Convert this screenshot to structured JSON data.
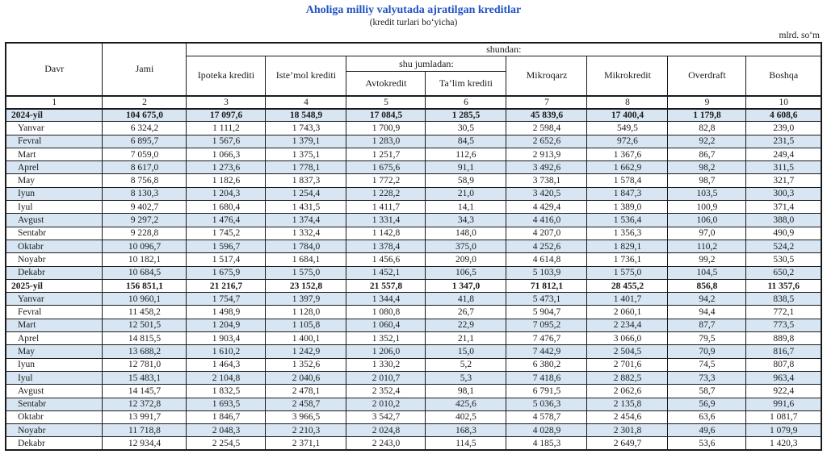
{
  "title": "Aholiga milliy valyutada ajratilgan kreditlar",
  "subtitle": "(kredit turlari boʻyicha)",
  "unit_label": "mlrd. soʻm",
  "colors": {
    "title_accent": "#2153c4",
    "row_highlight": "#d8e6f3",
    "border": "#1a1a1a"
  },
  "table": {
    "header": {
      "davr": "Davr",
      "jami": "Jami",
      "shundan": "shundan:",
      "shu_jumladan": "shu jumladan:",
      "ipoteka": "Ipoteka krediti",
      "istemol": "Iste’mol krediti",
      "avtokredit": "Avtokredit",
      "talim": "Ta’lim krediti",
      "mikroqarz": "Mikroqarz",
      "mikrokredit": "Mikrokredit",
      "overdraft": "Overdraft",
      "boshqa": "Boshqa",
      "column_numbers": [
        "1",
        "2",
        "3",
        "4",
        "5",
        "6",
        "7",
        "8",
        "9",
        "10"
      ]
    },
    "rows": [
      {
        "label": "2024-yil",
        "bold": true,
        "values": [
          "104 675,0",
          "17 097,6",
          "18 548,9",
          "17 084,5",
          "1 285,5",
          "45 839,6",
          "17 400,4",
          "1 179,8",
          "4 608,6"
        ]
      },
      {
        "label": "Yanvar",
        "bold": false,
        "values": [
          "6 324,2",
          "1 111,2",
          "1 743,3",
          "1 700,9",
          "30,5",
          "2 598,4",
          "549,5",
          "82,8",
          "239,0"
        ]
      },
      {
        "label": "Fevral",
        "bold": false,
        "values": [
          "6 895,7",
          "1 567,6",
          "1 379,1",
          "1 283,0",
          "84,5",
          "2 652,6",
          "972,6",
          "92,2",
          "231,5"
        ]
      },
      {
        "label": "Mart",
        "bold": false,
        "values": [
          "7 059,0",
          "1 066,3",
          "1 375,1",
          "1 251,7",
          "112,6",
          "2 913,9",
          "1 367,6",
          "86,7",
          "249,4"
        ]
      },
      {
        "label": "Aprel",
        "bold": false,
        "values": [
          "8 617,0",
          "1 273,6",
          "1 778,1",
          "1 675,6",
          "91,1",
          "3 492,6",
          "1 662,9",
          "98,2",
          "311,5"
        ]
      },
      {
        "label": "May",
        "bold": false,
        "values": [
          "8 756,8",
          "1 182,6",
          "1 837,3",
          "1 772,2",
          "58,9",
          "3 738,1",
          "1 578,4",
          "98,7",
          "321,7"
        ]
      },
      {
        "label": "Iyun",
        "bold": false,
        "values": [
          "8 130,3",
          "1 204,3",
          "1 254,4",
          "1 228,2",
          "21,0",
          "3 420,5",
          "1 847,3",
          "103,5",
          "300,3"
        ]
      },
      {
        "label": "Iyul",
        "bold": false,
        "values": [
          "9 402,7",
          "1 680,4",
          "1 431,5",
          "1 411,7",
          "14,1",
          "4 429,4",
          "1 389,0",
          "100,9",
          "371,4"
        ]
      },
      {
        "label": "Avgust",
        "bold": false,
        "values": [
          "9 297,2",
          "1 476,4",
          "1 374,4",
          "1 331,4",
          "34,3",
          "4 416,0",
          "1 536,4",
          "106,0",
          "388,0"
        ]
      },
      {
        "label": "Sentabr",
        "bold": false,
        "values": [
          "9 228,8",
          "1 745,2",
          "1 332,4",
          "1 142,8",
          "148,0",
          "4 207,0",
          "1 356,3",
          "97,0",
          "490,9"
        ]
      },
      {
        "label": "Oktabr",
        "bold": false,
        "values": [
          "10 096,7",
          "1 596,7",
          "1 784,0",
          "1 378,4",
          "375,0",
          "4 252,6",
          "1 829,1",
          "110,2",
          "524,2"
        ]
      },
      {
        "label": "Noyabr",
        "bold": false,
        "values": [
          "10 182,1",
          "1 517,4",
          "1 684,1",
          "1 456,6",
          "209,0",
          "4 614,8",
          "1 736,1",
          "99,2",
          "530,5"
        ]
      },
      {
        "label": "Dekabr",
        "bold": false,
        "values": [
          "10 684,5",
          "1 675,9",
          "1 575,0",
          "1 452,1",
          "106,5",
          "5 103,9",
          "1 575,0",
          "104,5",
          "650,2"
        ]
      },
      {
        "label": "2025-yil",
        "bold": true,
        "values": [
          "156 851,1",
          "21 216,7",
          "23 152,8",
          "21 557,8",
          "1 347,0",
          "71 812,1",
          "28 455,2",
          "856,8",
          "11 357,6"
        ]
      },
      {
        "label": "Yanvar",
        "bold": false,
        "values": [
          "10 960,1",
          "1 754,7",
          "1 397,9",
          "1 344,4",
          "41,8",
          "5 473,1",
          "1 401,7",
          "94,2",
          "838,5"
        ]
      },
      {
        "label": "Fevral",
        "bold": false,
        "values": [
          "11 458,2",
          "1 498,9",
          "1 128,0",
          "1 080,8",
          "26,7",
          "5 904,7",
          "2 060,1",
          "94,4",
          "772,1"
        ]
      },
      {
        "label": "Mart",
        "bold": false,
        "values": [
          "12 501,5",
          "1 204,9",
          "1 105,8",
          "1 060,4",
          "22,9",
          "7 095,2",
          "2 234,4",
          "87,7",
          "773,5"
        ]
      },
      {
        "label": "Aprel",
        "bold": false,
        "values": [
          "14 815,5",
          "1 903,4",
          "1 400,1",
          "1 352,1",
          "21,1",
          "7 476,7",
          "3 066,0",
          "79,5",
          "889,8"
        ]
      },
      {
        "label": "May",
        "bold": false,
        "values": [
          "13 688,2",
          "1 610,2",
          "1 242,9",
          "1 206,0",
          "15,0",
          "7 442,9",
          "2 504,5",
          "70,9",
          "816,7"
        ]
      },
      {
        "label": "Iyun",
        "bold": false,
        "values": [
          "12 781,0",
          "1 464,3",
          "1 352,6",
          "1 330,2",
          "5,2",
          "6 380,2",
          "2 701,6",
          "74,5",
          "807,8"
        ]
      },
      {
        "label": "Iyul",
        "bold": false,
        "values": [
          "15 483,1",
          "2 104,8",
          "2 040,6",
          "2 010,7",
          "5,3",
          "7 418,6",
          "2 882,5",
          "73,3",
          "963,4"
        ]
      },
      {
        "label": "Avgust",
        "bold": false,
        "values": [
          "14 145,7",
          "1 832,5",
          "2 478,1",
          "2 352,4",
          "98,1",
          "6 791,5",
          "2 062,6",
          "58,7",
          "922,4"
        ]
      },
      {
        "label": "Sentabr",
        "bold": false,
        "values": [
          "12 372,8",
          "1 693,5",
          "2 458,7",
          "2 010,2",
          "425,6",
          "5 036,3",
          "2 135,8",
          "56,9",
          "991,6"
        ]
      },
      {
        "label": "Oktabr",
        "bold": false,
        "values": [
          "13 991,7",
          "1 846,7",
          "3 966,5",
          "3 542,7",
          "402,5",
          "4 578,7",
          "2 454,6",
          "63,6",
          "1 081,7"
        ]
      },
      {
        "label": "Noyabr",
        "bold": false,
        "values": [
          "11 718,8",
          "2 048,3",
          "2 210,3",
          "2 024,8",
          "168,3",
          "4 028,9",
          "2 301,8",
          "49,6",
          "1 079,9"
        ]
      },
      {
        "label": "Dekabr",
        "bold": false,
        "values": [
          "12 934,4",
          "2 254,5",
          "2 371,1",
          "2 243,0",
          "114,5",
          "4 185,3",
          "2 649,7",
          "53,6",
          "1 420,3"
        ]
      }
    ]
  }
}
